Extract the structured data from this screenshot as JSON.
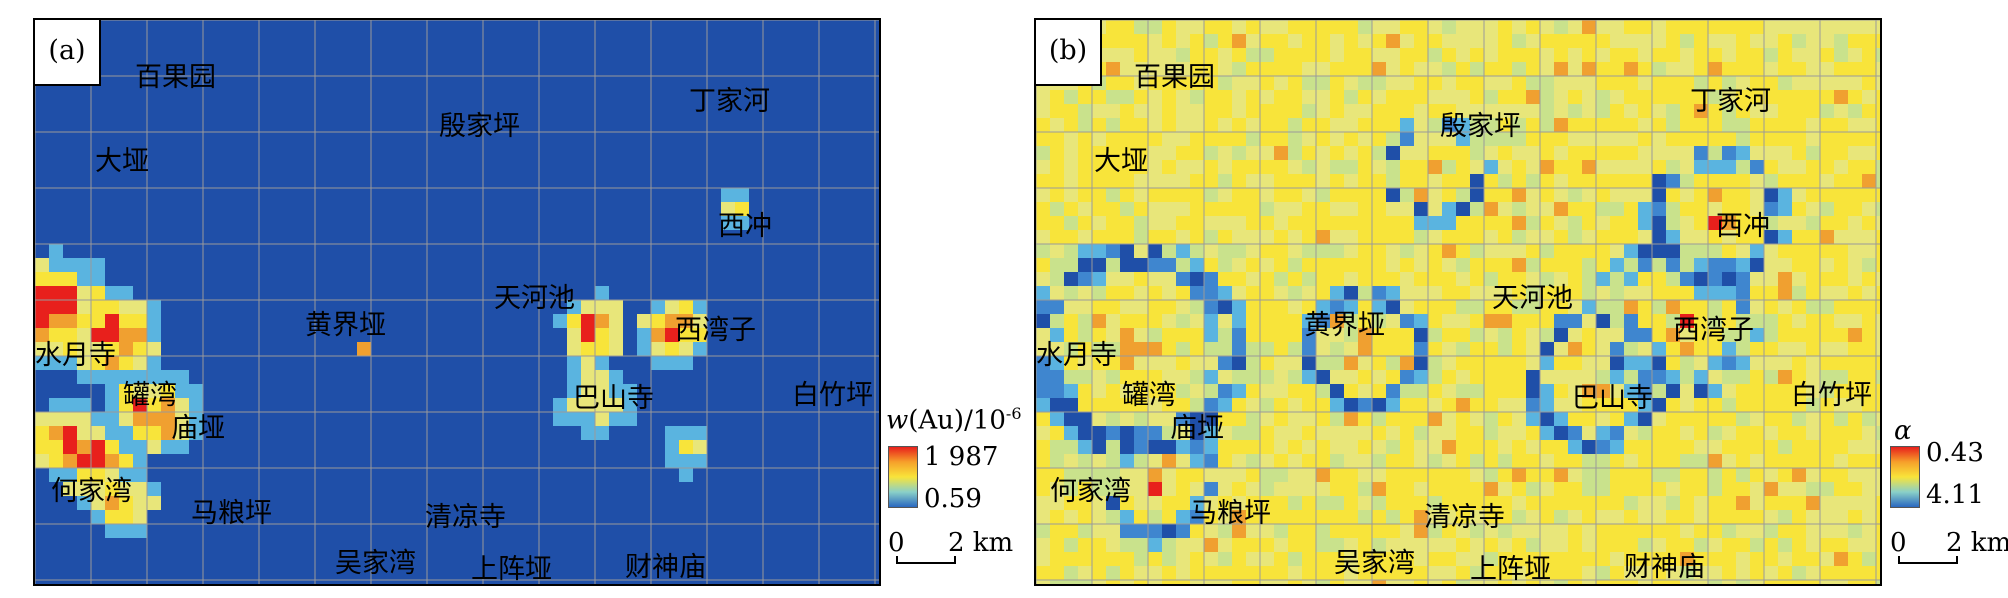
{
  "panels": [
    {
      "tag": "(a)",
      "variable": "w(Au)",
      "legend": {
        "title_var": "w",
        "title_paren": "(Au)/10",
        "title_exp": "-6",
        "max": "1 987",
        "min": "0.59"
      },
      "places": [
        "百果园",
        "大垭",
        "殷家坪",
        "丁家河",
        "西冲",
        "天河池",
        "黄界垭",
        "西湾子",
        "水月寺",
        "罐湾",
        "巴山寺",
        "白竹坪",
        "庙垭",
        "何家湾",
        "马粮坪",
        "清凉寺",
        "吴家湾",
        "上阵垭",
        "财神庙"
      ]
    },
    {
      "tag": "(b)",
      "variable": "α",
      "legend": {
        "title_var": "α",
        "title_paren": "",
        "title_exp": "",
        "max": "0.43",
        "min": "4.11"
      },
      "places": [
        "百果园",
        "大垭",
        "殷家坪",
        "丁家河",
        "西冲",
        "天河池",
        "黄界垭",
        "西湾子",
        "水月寺",
        "罐湾",
        "巴山寺",
        "白竹坪",
        "庙垭",
        "何家湾",
        "马粮坪",
        "清凉寺",
        "吴家湾",
        "上阵垭",
        "财神庙"
      ]
    }
  ],
  "scale": {
    "zero": "0",
    "distance": "2 km"
  },
  "colors": {
    "low_blue": "#1f4fa8",
    "cyan": "#5ab4e0",
    "pale_yellow": "#e8e67a",
    "yellow": "#f8e43a",
    "orange": "#f0a030",
    "red": "#e8201c",
    "grid": "#9a9a9a",
    "ramp": [
      "#e8201c",
      "#f6a02a",
      "#f8e43a",
      "#8ad0c8",
      "#2a68c0"
    ]
  }
}
